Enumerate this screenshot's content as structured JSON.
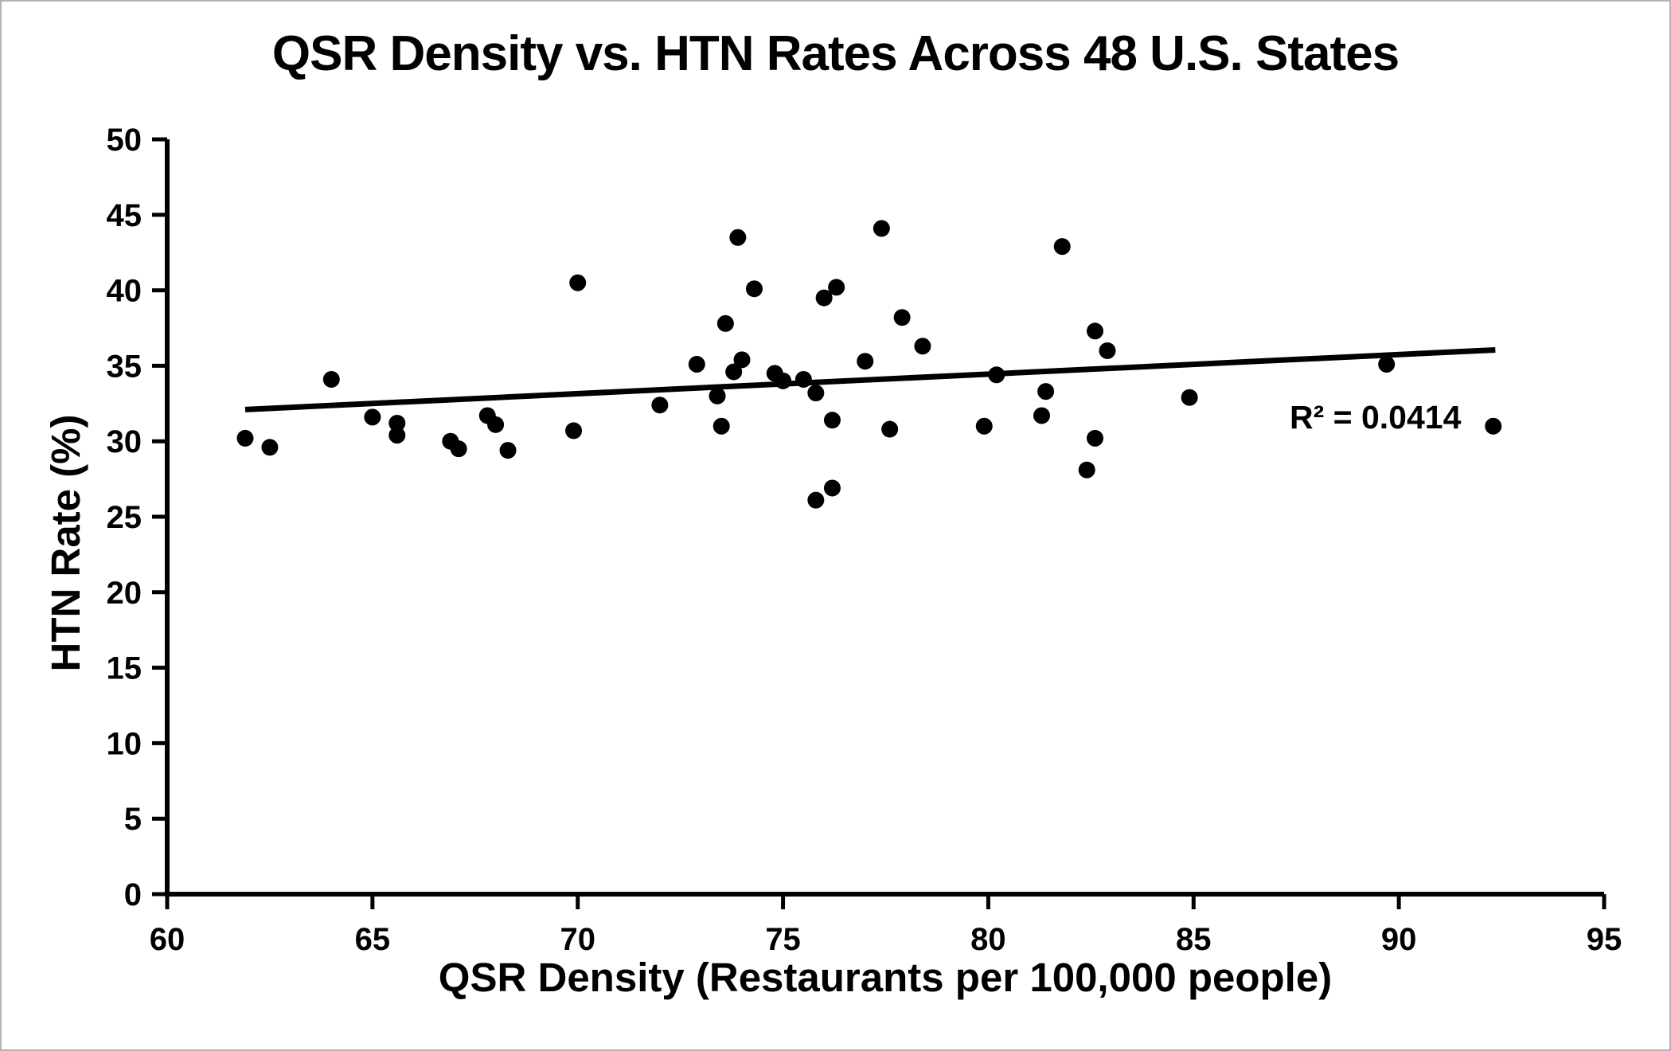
{
  "chart_data": {
    "type": "scatter",
    "title": "QSR Density vs. HTN Rates Across 48 U.S. States",
    "xlabel": "QSR Density (Restaurants per 100,000 people)",
    "ylabel": "HTN Rate (%)",
    "r_squared_label": "R² = 0.0414",
    "xlim": [
      60,
      95
    ],
    "ylim": [
      0,
      50
    ],
    "xticks": [
      60,
      65,
      70,
      75,
      80,
      85,
      90,
      95
    ],
    "yticks": [
      0,
      5,
      10,
      15,
      20,
      25,
      30,
      35,
      40,
      45,
      50
    ],
    "grid": false,
    "legend": "none",
    "marker_color": "#000000",
    "trendline": {
      "x1": 61.9,
      "y1": 32.1,
      "x2": 92.35,
      "y2": 36.05
    },
    "points": [
      [
        61.9,
        30.2
      ],
      [
        62.5,
        29.6
      ],
      [
        64.0,
        34.1
      ],
      [
        65.0,
        31.6
      ],
      [
        65.6,
        31.2
      ],
      [
        65.6,
        30.4
      ],
      [
        66.9,
        30.0
      ],
      [
        67.1,
        29.5
      ],
      [
        67.8,
        31.7
      ],
      [
        68.0,
        31.1
      ],
      [
        68.3,
        29.4
      ],
      [
        69.9,
        30.7
      ],
      [
        70.0,
        40.5
      ],
      [
        72.0,
        32.4
      ],
      [
        72.9,
        35.1
      ],
      [
        73.4,
        33.0
      ],
      [
        73.5,
        31.0
      ],
      [
        73.6,
        37.8
      ],
      [
        73.8,
        34.6
      ],
      [
        73.9,
        43.5
      ],
      [
        74.0,
        35.4
      ],
      [
        74.3,
        40.1
      ],
      [
        74.8,
        34.5
      ],
      [
        75.0,
        34.0
      ],
      [
        75.5,
        34.1
      ],
      [
        75.8,
        33.2
      ],
      [
        75.8,
        26.1
      ],
      [
        76.2,
        26.9
      ],
      [
        76.0,
        39.5
      ],
      [
        76.3,
        40.2
      ],
      [
        76.2,
        31.4
      ],
      [
        77.0,
        35.3
      ],
      [
        77.4,
        44.1
      ],
      [
        77.6,
        30.8
      ],
      [
        77.9,
        38.2
      ],
      [
        78.4,
        36.3
      ],
      [
        79.9,
        31.0
      ],
      [
        80.2,
        34.4
      ],
      [
        81.3,
        31.7
      ],
      [
        81.4,
        33.3
      ],
      [
        81.8,
        42.9
      ],
      [
        82.4,
        28.1
      ],
      [
        82.6,
        37.3
      ],
      [
        82.6,
        30.2
      ],
      [
        82.9,
        36.0
      ],
      [
        84.9,
        32.9
      ],
      [
        89.7,
        35.1
      ],
      [
        92.3,
        31.0
      ]
    ]
  }
}
